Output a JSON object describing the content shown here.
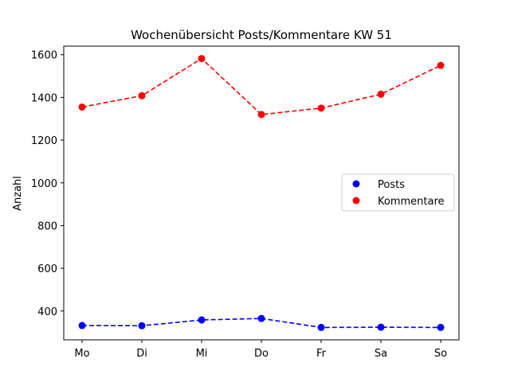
{
  "chart_data": {
    "type": "line",
    "title": "Wochenübersicht Posts/Kommentare KW 51",
    "xlabel": "",
    "ylabel": "Anzahl",
    "categories": [
      "Mo",
      "Di",
      "Mi",
      "Do",
      "Fr",
      "Sa",
      "So"
    ],
    "ylim": [
      265,
      1640
    ],
    "yticks": [
      400,
      600,
      800,
      1000,
      1200,
      1400,
      1600
    ],
    "grid": false,
    "legend_position": "center-right",
    "series": [
      {
        "name": "Posts",
        "color": "#0000ff",
        "line_style": "dashed",
        "marker": "circle",
        "values": [
          332,
          331,
          358,
          365,
          323,
          324,
          323
        ]
      },
      {
        "name": "Kommentare",
        "color": "#ff0000",
        "line_style": "dashed",
        "marker": "circle",
        "values": [
          1355,
          1408,
          1582,
          1320,
          1350,
          1415,
          1550
        ]
      }
    ]
  }
}
